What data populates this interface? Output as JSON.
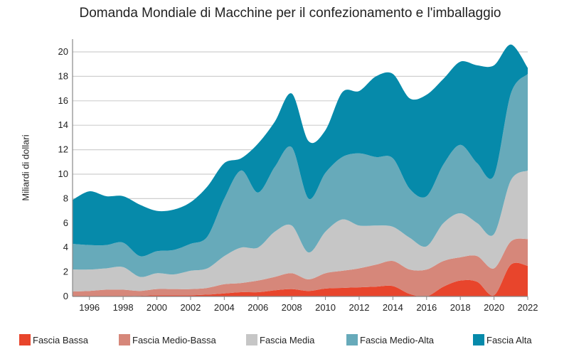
{
  "chart_data": {
    "type": "area",
    "stacked": true,
    "title": "Domanda Mondiale di Macchine per il confezionamento e l'imballaggio",
    "xlabel": "",
    "ylabel": "Miliardi di dollari",
    "ylim": [
      0,
      21
    ],
    "yticks": [
      0,
      2,
      4,
      6,
      8,
      10,
      12,
      14,
      16,
      18,
      20
    ],
    "xticks": [
      1996,
      1998,
      2000,
      2002,
      2004,
      2006,
      2008,
      2010,
      2012,
      2014,
      2016,
      2018,
      2020,
      2022
    ],
    "xlim": [
      1995,
      2022
    ],
    "grid": true,
    "legend_position": "bottom",
    "x": [
      1995,
      1996,
      1997,
      1998,
      1999,
      2000,
      2001,
      2002,
      2003,
      2004,
      2005,
      2006,
      2007,
      2008,
      2009,
      2010,
      2011,
      2012,
      2013,
      2014,
      2015,
      2016,
      2017,
      2018,
      2019,
      2020,
      2021,
      2022
    ],
    "series": [
      {
        "name": "Fascia Bassa",
        "color": "#e8452c",
        "values": [
          0.05,
          0.05,
          0.05,
          0.05,
          0.05,
          0.1,
          0.1,
          0.1,
          0.15,
          0.25,
          0.35,
          0.35,
          0.5,
          0.6,
          0.45,
          0.65,
          0.7,
          0.75,
          0.8,
          0.85,
          0.2,
          0,
          0.8,
          1.3,
          1.2,
          0.1,
          2.6,
          2.5
        ]
      },
      {
        "name": "Fascia Medio-Bassa",
        "color": "#d6877a",
        "values": [
          0.35,
          0.4,
          0.5,
          0.5,
          0.4,
          0.5,
          0.5,
          0.5,
          0.55,
          0.75,
          0.75,
          0.95,
          1.1,
          1.3,
          0.95,
          1.25,
          1.4,
          1.55,
          1.8,
          2.05,
          2.0,
          2.2,
          2.1,
          1.9,
          2.1,
          2.2,
          1.9,
          2.2
        ]
      },
      {
        "name": "Fascia Media",
        "color": "#c6c6c6",
        "values": [
          1.8,
          1.75,
          1.75,
          1.85,
          1.15,
          1.3,
          1.2,
          1.5,
          1.6,
          2.3,
          2.9,
          2.7,
          3.7,
          3.9,
          2.2,
          3.4,
          4.2,
          3.5,
          3.2,
          2.8,
          2.6,
          1.9,
          3.1,
          3.6,
          2.7,
          2.8,
          5.0,
          5.6
        ]
      },
      {
        "name": "Fascia Medio-Alta",
        "color": "#67aaba",
        "values": [
          2.1,
          2.0,
          1.9,
          2.0,
          1.7,
          1.8,
          2.0,
          2.2,
          2.6,
          4.7,
          6.3,
          4.5,
          5.3,
          6.4,
          4.4,
          4.8,
          5.1,
          5.9,
          5.6,
          5.6,
          4.0,
          4.1,
          4.8,
          5.6,
          4.9,
          4.8,
          7.1,
          7.9
        ]
      },
      {
        "name": "Fascia Alta",
        "color": "#068aaa",
        "values": [
          3.6,
          4.4,
          4.0,
          3.8,
          4.2,
          3.3,
          3.3,
          3.4,
          4.1,
          2.9,
          1.0,
          4.0,
          3.7,
          4.4,
          4.7,
          3.5,
          5.3,
          5.1,
          6.6,
          6.9,
          7.4,
          8.3,
          7.0,
          6.8,
          8.0,
          9.0,
          4.0,
          0.5
        ]
      }
    ]
  }
}
